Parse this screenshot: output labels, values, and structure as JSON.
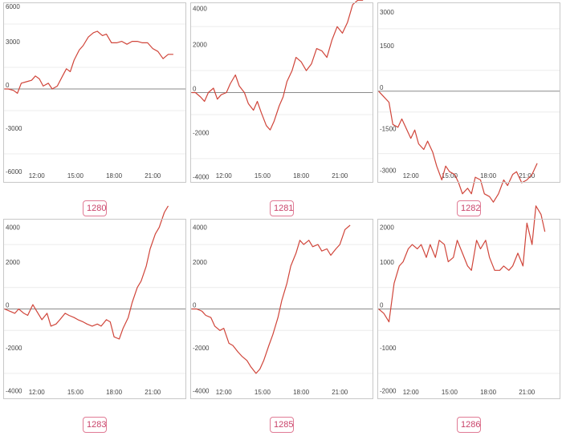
{
  "chart_data": [
    {
      "type": "line",
      "label": "1280",
      "ylim": [
        -6500,
        6000
      ],
      "yticks": [
        6000,
        3000,
        0,
        -3000,
        -6000
      ],
      "xlim": [
        9.4,
        23.6
      ],
      "xticks": [
        "12:00",
        "15:00",
        "18:00",
        "21:00"
      ],
      "grid": true,
      "series": [
        {
          "color": "#d0453a",
          "x": [
            9.5,
            9.8,
            10.2,
            10.5,
            10.8,
            11.2,
            11.6,
            11.9,
            12.2,
            12.5,
            12.9,
            13.2,
            13.6,
            14.0,
            14.3,
            14.6,
            14.9,
            15.3,
            15.6,
            16.0,
            16.4,
            16.7,
            17.1,
            17.4,
            17.8,
            18.2,
            18.6,
            19.0,
            19.4,
            19.8,
            20.2,
            20.6,
            21.0,
            21.4,
            21.8,
            22.2,
            22.6
          ],
          "y": [
            0,
            0,
            -100,
            -300,
            400,
            500,
            600,
            900,
            700,
            200,
            400,
            0,
            200,
            900,
            1400,
            1200,
            2000,
            2700,
            3000,
            3600,
            3900,
            4000,
            3700,
            3800,
            3200,
            3200,
            3300,
            3100,
            3300,
            3300,
            3200,
            3200,
            2800,
            2600,
            2100,
            2400,
            2400
          ]
        }
      ]
    },
    {
      "type": "line",
      "label": "1281",
      "ylim": [
        -4100,
        4100
      ],
      "yticks": [
        4000,
        2000,
        0,
        -2000,
        -4000
      ],
      "xlim": [
        9.4,
        23.6
      ],
      "xticks": [
        "12:00",
        "15:00",
        "18:00",
        "21:00"
      ],
      "grid": true,
      "series": [
        {
          "color": "#d0453a",
          "x": [
            9.5,
            9.8,
            10.2,
            10.5,
            10.8,
            11.2,
            11.5,
            11.8,
            12.2,
            12.5,
            12.9,
            13.2,
            13.6,
            13.9,
            14.3,
            14.6,
            14.9,
            15.3,
            15.6,
            15.9,
            16.3,
            16.6,
            16.9,
            17.3,
            17.6,
            18.0,
            18.4,
            18.8,
            19.2,
            19.6,
            20.0,
            20.4,
            20.8,
            21.2,
            21.6,
            22.0,
            22.4,
            22.8
          ],
          "y": [
            0,
            0,
            -200,
            -400,
            0,
            200,
            -300,
            -100,
            0,
            400,
            800,
            300,
            0,
            -500,
            -800,
            -400,
            -900,
            -1500,
            -1700,
            -1300,
            -600,
            -200,
            500,
            1000,
            1600,
            1400,
            1000,
            1300,
            2000,
            1900,
            1600,
            2400,
            3000,
            2700,
            3200,
            4000,
            4200,
            4200
          ]
        }
      ]
    },
    {
      "type": "line",
      "label": "1282",
      "ylim": [
        -3300,
        3200
      ],
      "yticks": [
        3000,
        1500,
        0,
        -1500,
        -3000
      ],
      "xlim": [
        9.4,
        23.6
      ],
      "xticks": [
        "12:00",
        "15:00",
        "18:00",
        "21:00"
      ],
      "grid": true,
      "series": [
        {
          "color": "#d0453a",
          "x": [
            9.5,
            9.9,
            10.3,
            10.6,
            11.0,
            11.3,
            11.6,
            12.0,
            12.3,
            12.6,
            13.0,
            13.3,
            13.7,
            14.0,
            14.4,
            14.7,
            15.0,
            15.4,
            15.7,
            16.0,
            16.4,
            16.7,
            17.0,
            17.4,
            17.7,
            18.1,
            18.4,
            18.8,
            19.2,
            19.5,
            19.9,
            20.2,
            20.6,
            21.0,
            21.4,
            21.8
          ],
          "y": [
            0,
            -200,
            -400,
            -1200,
            -1300,
            -1000,
            -1300,
            -1700,
            -1400,
            -1900,
            -2100,
            -1800,
            -2200,
            -2700,
            -3200,
            -2700,
            -2900,
            -3000,
            -3300,
            -3700,
            -3500,
            -3700,
            -3100,
            -3200,
            -3700,
            -3800,
            -4000,
            -3700,
            -3200,
            -3400,
            -3000,
            -2900,
            -3300,
            -3200,
            -3000,
            -2600
          ]
        }
      ]
    },
    {
      "type": "line",
      "label": "1283",
      "ylim": [
        -4200,
        4200
      ],
      "yticks": [
        4000,
        2000,
        0,
        -2000,
        -4000
      ],
      "xlim": [
        9.4,
        23.6
      ],
      "xticks": [
        "12:00",
        "15:00",
        "18:00",
        "21:00"
      ],
      "grid": true,
      "series": [
        {
          "color": "#d0453a",
          "x": [
            9.5,
            9.9,
            10.3,
            10.6,
            11.0,
            11.3,
            11.7,
            12.0,
            12.4,
            12.8,
            13.1,
            13.5,
            13.8,
            14.2,
            14.5,
            14.9,
            15.2,
            15.6,
            15.9,
            16.3,
            16.7,
            17.0,
            17.4,
            17.7,
            18.0,
            18.4,
            18.7,
            19.1,
            19.4,
            19.8,
            20.1,
            20.5,
            20.8,
            21.2,
            21.5,
            21.9,
            22.2
          ],
          "y": [
            0,
            -100,
            -200,
            0,
            -200,
            -300,
            200,
            -100,
            -500,
            -200,
            -800,
            -700,
            -500,
            -200,
            -300,
            -400,
            -500,
            -600,
            -700,
            -800,
            -700,
            -800,
            -500,
            -600,
            -1300,
            -1400,
            -900,
            -400,
            300,
            1000,
            1300,
            2000,
            2800,
            3500,
            3800,
            4500,
            4800
          ]
        }
      ]
    },
    {
      "type": "line",
      "label": "1285",
      "ylim": [
        -4200,
        4200
      ],
      "yticks": [
        4000,
        2000,
        0,
        -2000,
        -4000
      ],
      "xlim": [
        9.4,
        23.6
      ],
      "xticks": [
        "12:00",
        "15:00",
        "18:00",
        "21:00"
      ],
      "grid": true,
      "series": [
        {
          "color": "#d0453a",
          "x": [
            9.5,
            9.9,
            10.3,
            10.6,
            11.0,
            11.3,
            11.7,
            12.0,
            12.4,
            12.7,
            13.1,
            13.4,
            13.8,
            14.1,
            14.5,
            14.8,
            15.1,
            15.5,
            15.8,
            16.2,
            16.5,
            16.9,
            17.2,
            17.6,
            17.9,
            18.2,
            18.6,
            18.9,
            19.3,
            19.6,
            20.0,
            20.3,
            20.7,
            21.0,
            21.4,
            21.8
          ],
          "y": [
            0,
            0,
            -100,
            -300,
            -400,
            -800,
            -1000,
            -900,
            -1600,
            -1700,
            -2000,
            -2200,
            -2400,
            -2700,
            -3000,
            -2800,
            -2400,
            -1700,
            -1200,
            -400,
            400,
            1200,
            2000,
            2600,
            3200,
            3000,
            3200,
            2900,
            3000,
            2700,
            2800,
            2500,
            2800,
            3000,
            3700,
            3900
          ]
        }
      ]
    },
    {
      "type": "line",
      "label": "1286",
      "ylim": [
        -2100,
        2100
      ],
      "yticks": [
        2000,
        1000,
        0,
        -1000,
        -2000
      ],
      "xlim": [
        9.4,
        23.6
      ],
      "xticks": [
        "12:00",
        "15:00",
        "18:00",
        "21:00"
      ],
      "grid": true,
      "series": [
        {
          "color": "#d0453a",
          "x": [
            9.5,
            9.9,
            10.3,
            10.7,
            11.1,
            11.4,
            11.8,
            12.1,
            12.5,
            12.8,
            13.2,
            13.5,
            13.9,
            14.2,
            14.6,
            14.9,
            15.3,
            15.6,
            16.0,
            16.4,
            16.7,
            17.1,
            17.4,
            17.8,
            18.1,
            18.5,
            18.9,
            19.2,
            19.6,
            19.9,
            20.3,
            20.7,
            21.0,
            21.4,
            21.7,
            22.1,
            22.4
          ],
          "y": [
            0,
            -100,
            -300,
            600,
            1000,
            1100,
            1400,
            1500,
            1400,
            1500,
            1200,
            1500,
            1200,
            1600,
            1500,
            1100,
            1200,
            1600,
            1300,
            1000,
            900,
            1600,
            1400,
            1600,
            1200,
            900,
            900,
            1000,
            900,
            1000,
            1300,
            1000,
            2000,
            1500,
            2400,
            2200,
            1800
          ]
        }
      ]
    }
  ]
}
